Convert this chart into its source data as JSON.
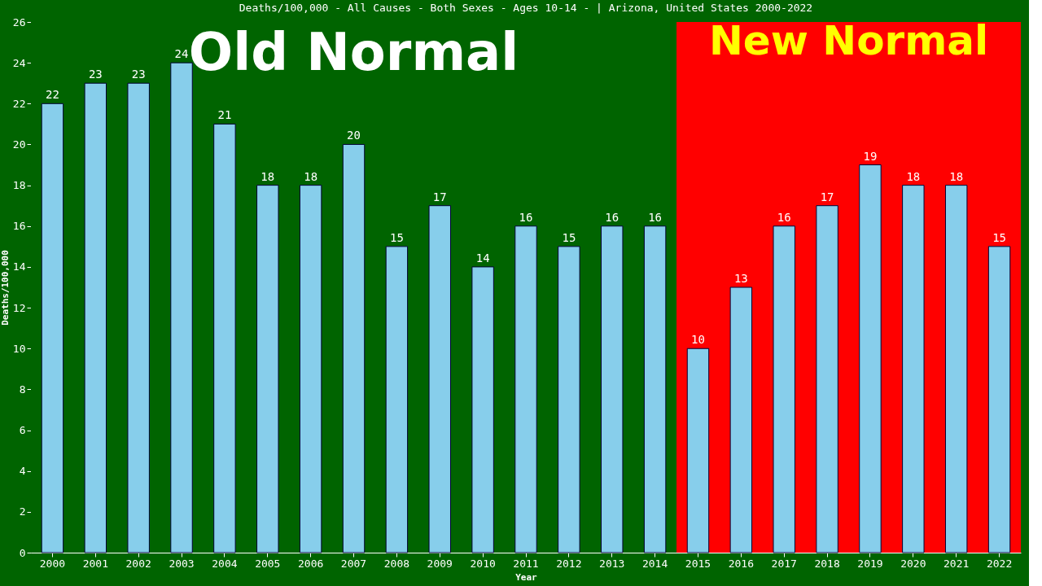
{
  "chart_data": {
    "type": "bar",
    "title": "Deaths/100,000 - All Causes - Both Sexes - Ages 10-14 -  | Arizona, United States 2000-2022",
    "xlabel": "Year",
    "ylabel": "Deaths/100,000",
    "categories": [
      "2000",
      "2001",
      "2002",
      "2003",
      "2004",
      "2005",
      "2006",
      "2007",
      "2008",
      "2009",
      "2010",
      "2011",
      "2012",
      "2013",
      "2014",
      "2015",
      "2016",
      "2017",
      "2018",
      "2019",
      "2020",
      "2021",
      "2022"
    ],
    "values": [
      22,
      23,
      23,
      24,
      21,
      18,
      18,
      20,
      15,
      17,
      14,
      16,
      15,
      16,
      16,
      10,
      13,
      16,
      17,
      19,
      18,
      18,
      15
    ],
    "color": "#87ceeb",
    "data_labels": true,
    "grid": false,
    "ylim": [
      0,
      26
    ],
    "yticks": [
      0,
      2,
      4,
      6,
      8,
      10,
      12,
      14,
      16,
      18,
      20,
      22,
      24,
      26
    ],
    "bands": [
      {
        "axis": "x",
        "from": "2000",
        "to": "2014",
        "label": "Old Normal",
        "color": "#006400"
      },
      {
        "axis": "x",
        "from": "2015",
        "to": "2022",
        "label": "New Normal",
        "color": "#ff0000"
      }
    ]
  }
}
